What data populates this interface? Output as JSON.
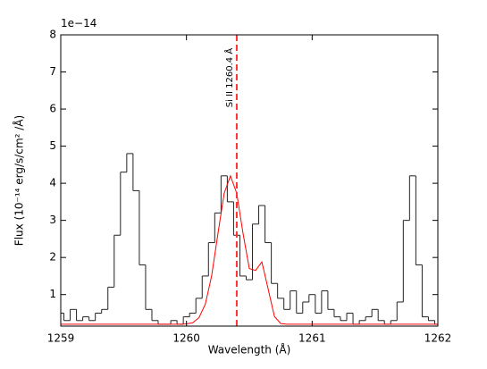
{
  "chart_data": {
    "type": "line",
    "offset_text": "1e−14",
    "xlabel": "Wavelength (Å)",
    "ylabel": "Flux (10⁻¹⁴ erg/s/cm² /Å)",
    "annotation": "Si II  1260.4 Å",
    "vline": {
      "x": 1260.4,
      "color": "#ff3333",
      "style": "dashed"
    },
    "x": [
      1259.0,
      1259.05,
      1259.1,
      1259.15,
      1259.2,
      1259.25,
      1259.3,
      1259.35,
      1259.4,
      1259.45,
      1259.5,
      1259.55,
      1259.6,
      1259.65,
      1259.7,
      1259.75,
      1259.8,
      1259.85,
      1259.9,
      1259.95,
      1260.0,
      1260.05,
      1260.1,
      1260.15,
      1260.2,
      1260.25,
      1260.3,
      1260.35,
      1260.4,
      1260.45,
      1260.5,
      1260.55,
      1260.6,
      1260.65,
      1260.7,
      1260.75,
      1260.8,
      1260.85,
      1260.9,
      1260.95,
      1261.0,
      1261.05,
      1261.1,
      1261.15,
      1261.2,
      1261.25,
      1261.3,
      1261.35,
      1261.4,
      1261.45,
      1261.5,
      1261.55,
      1261.6,
      1261.65,
      1261.7,
      1261.75,
      1261.8,
      1261.85,
      1261.9,
      1261.95,
      1262.0
    ],
    "series": [
      {
        "color": "#222222",
        "drawstyle": "steps-mid",
        "values": [
          0.5,
          0.3,
          0.6,
          0.3,
          0.4,
          0.3,
          0.5,
          0.6,
          1.2,
          2.6,
          4.3,
          4.8,
          3.8,
          1.8,
          0.6,
          0.3,
          0.2,
          0.2,
          0.3,
          0.2,
          0.4,
          0.5,
          0.9,
          1.5,
          2.4,
          3.2,
          4.2,
          3.5,
          2.6,
          1.5,
          1.4,
          2.9,
          3.4,
          2.4,
          1.3,
          0.9,
          0.6,
          1.1,
          0.5,
          0.8,
          1.0,
          0.5,
          1.1,
          0.6,
          0.4,
          0.3,
          0.5,
          0.2,
          0.3,
          0.4,
          0.6,
          0.3,
          0.2,
          0.3,
          0.8,
          3.0,
          4.2,
          1.8,
          0.4,
          0.3,
          0.2
        ]
      },
      {
        "color": "#ff0000",
        "drawstyle": "default",
        "values": [
          0.2,
          0.2,
          0.2,
          0.2,
          0.2,
          0.2,
          0.2,
          0.2,
          0.2,
          0.2,
          0.2,
          0.2,
          0.2,
          0.2,
          0.2,
          0.2,
          0.2,
          0.2,
          0.2,
          0.2,
          0.21,
          0.24,
          0.38,
          0.74,
          1.5,
          2.63,
          3.73,
          4.2,
          3.73,
          2.65,
          1.7,
          1.65,
          1.88,
          1.15,
          0.41,
          0.22,
          0.2,
          0.2,
          0.2,
          0.2,
          0.2,
          0.2,
          0.2,
          0.2,
          0.2,
          0.2,
          0.2,
          0.2,
          0.2,
          0.2,
          0.2,
          0.2,
          0.2,
          0.2,
          0.2,
          0.2,
          0.2,
          0.2,
          0.2,
          0.2,
          0.2
        ]
      }
    ],
    "xlim": [
      1259,
      1262
    ],
    "xticks": [
      1259,
      1260,
      1261,
      1262
    ],
    "ylim": [
      0.15,
      8
    ],
    "yticks": [
      1,
      2,
      3,
      4,
      5,
      6,
      7,
      8
    ],
    "grid": false
  }
}
